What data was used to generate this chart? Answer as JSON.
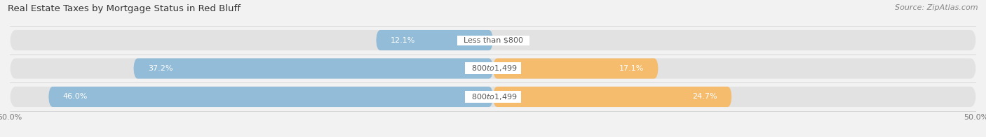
{
  "title": "Real Estate Taxes by Mortgage Status in Red Bluff",
  "source": "Source: ZipAtlas.com",
  "background_color": "#f2f2f2",
  "bar_background_color": "#e2e2e2",
  "rows": [
    {
      "label": "Less than $800",
      "without_mortgage": 12.1,
      "with_mortgage": 0.0
    },
    {
      "label": "$800 to $1,499",
      "without_mortgage": 37.2,
      "with_mortgage": 17.1
    },
    {
      "label": "$800 to $1,499",
      "without_mortgage": 46.0,
      "with_mortgage": 24.7
    }
  ],
  "x_min": -50.0,
  "x_max": 50.0,
  "without_mortgage_color": "#92bcd8",
  "with_mortgage_color": "#f5bc6e",
  "center_label_bg": "#ffffff",
  "bar_height": 0.72,
  "title_fontsize": 9.5,
  "source_fontsize": 8,
  "value_fontsize": 8,
  "label_fontsize": 8,
  "tick_fontsize": 8,
  "legend_fontsize": 8.5
}
